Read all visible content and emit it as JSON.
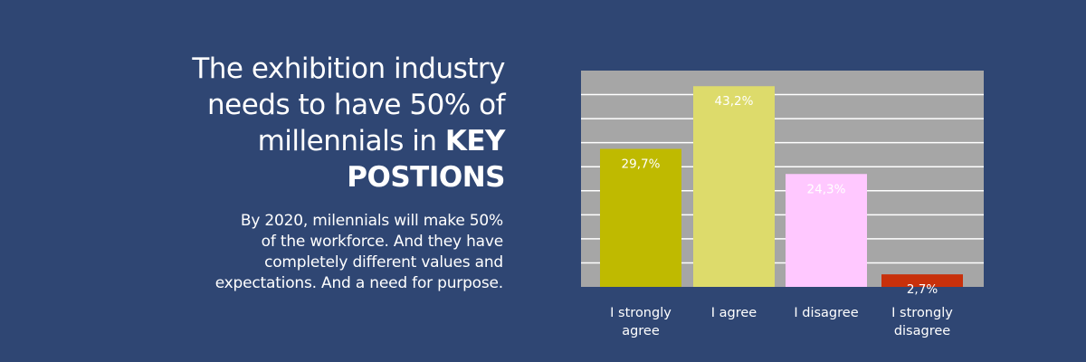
{
  "headline": {
    "line1": "The exhibition industry",
    "line2": "needs to have 50% of",
    "line3_prefix": "millennials in ",
    "line3_bold": "KEY",
    "line4_bold": "POSTIONS"
  },
  "description": {
    "line1": "By 2020, milennials will make 50%",
    "line2": "of the workforce. And they have",
    "line3": "completely different values and",
    "line4": "expectations. And a need for purpose."
  },
  "chart_data": {
    "type": "bar",
    "categories": [
      [
        "I strongly",
        "agree"
      ],
      [
        "I agree"
      ],
      [
        "I disagree"
      ],
      [
        "I strongly",
        "disagree"
      ]
    ],
    "values": [
      29.7,
      43.2,
      24.3,
      2.7
    ],
    "data_labels": [
      "29,7%",
      "43,2%",
      "24,3%",
      "2,7%"
    ],
    "bar_colors": [
      "#bfba00",
      "#dddb6b",
      "#ffc8ff",
      "#c8300b"
    ],
    "ylim": [
      0,
      45
    ],
    "gridline_count": 9,
    "grid": true,
    "plot_background": "#a6a6a6",
    "gridline_color": "#ffffff",
    "title": "",
    "xlabel": "",
    "ylabel": ""
  }
}
